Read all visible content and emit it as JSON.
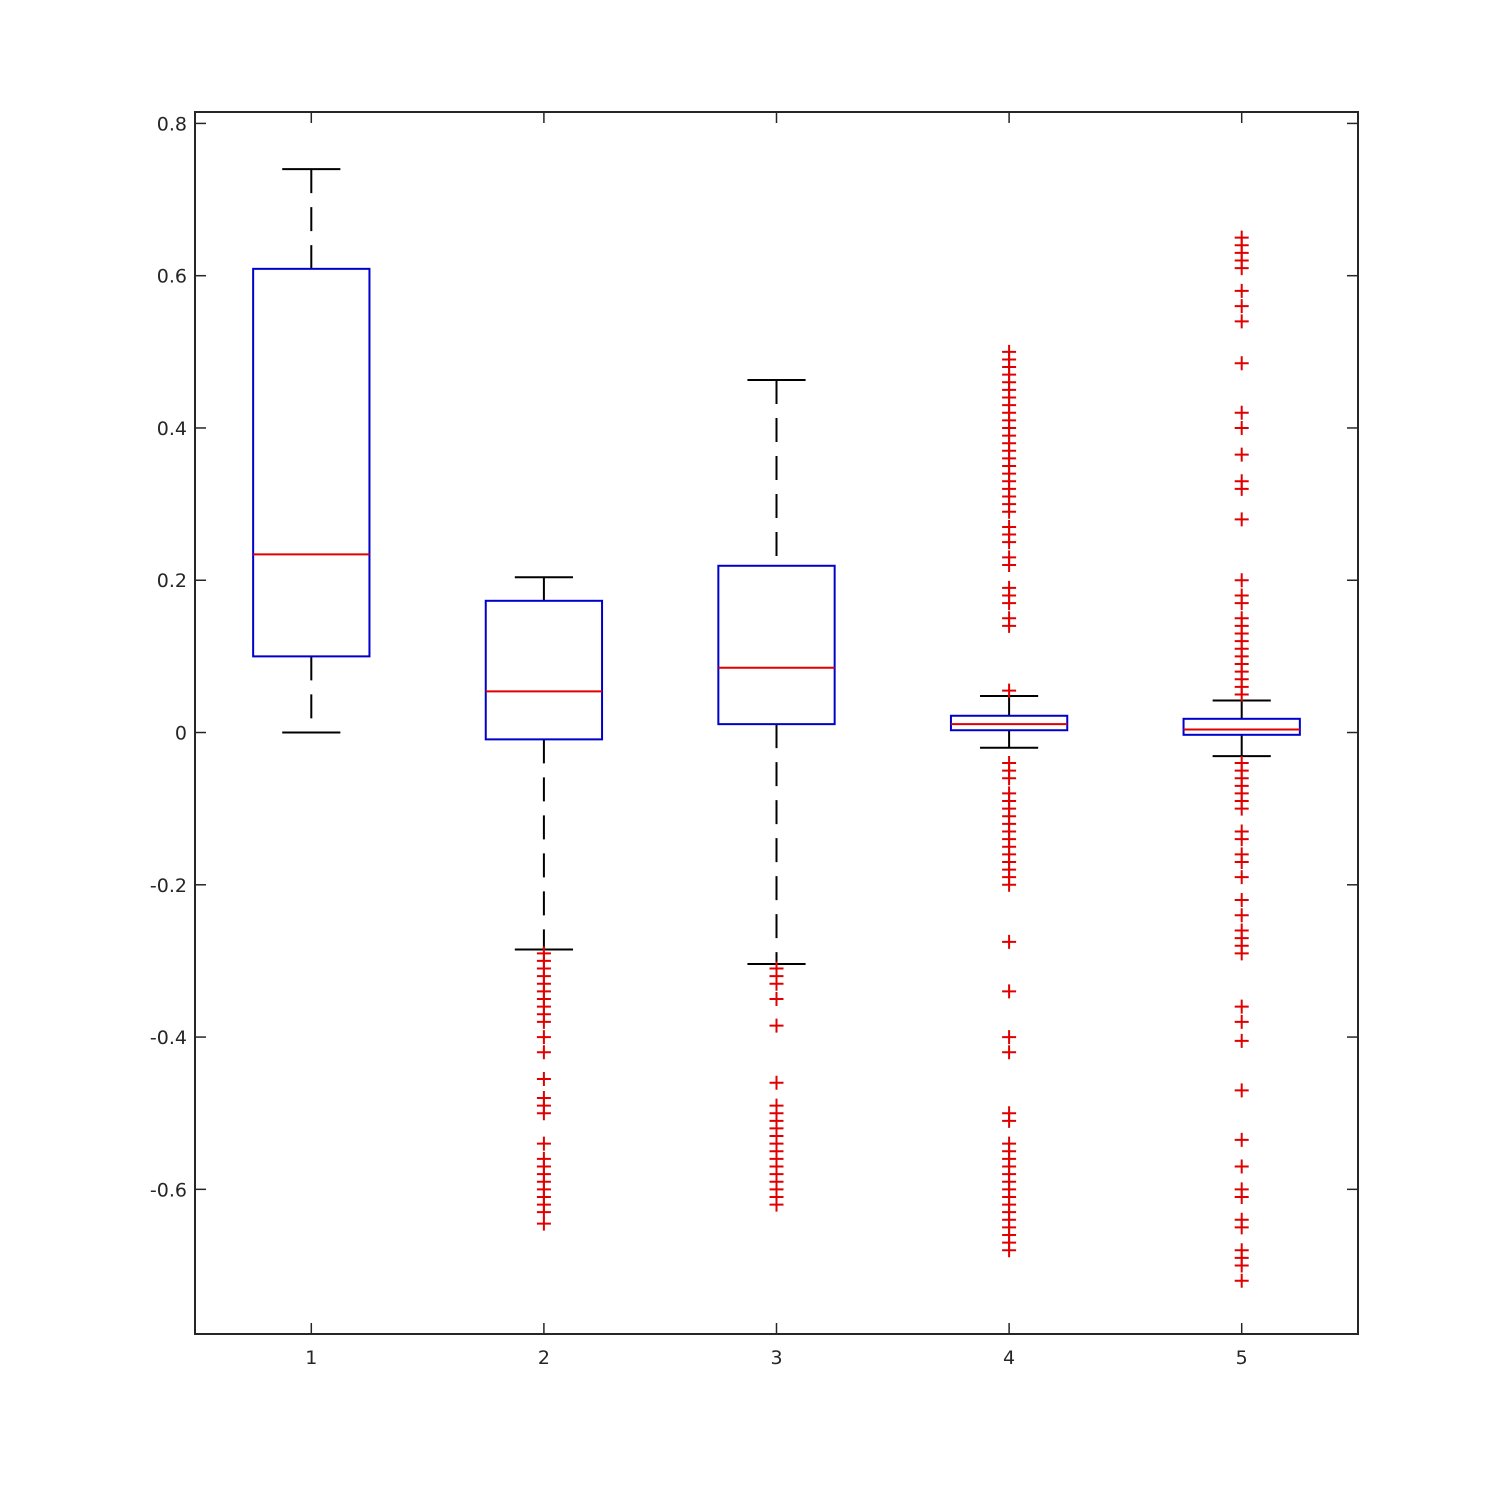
{
  "chart_data": {
    "type": "box",
    "title": "",
    "xlabel": "",
    "ylabel": "",
    "categories": [
      "1",
      "2",
      "3",
      "4",
      "5"
    ],
    "ylim": [
      -0.79,
      0.815
    ],
    "y_ticks": [
      -0.6,
      -0.4,
      -0.2,
      0,
      0.2,
      0.4,
      0.6,
      0.8
    ],
    "y_tick_labels": [
      "-0.6",
      "-0.4",
      "-0.2",
      "0",
      "0.2",
      "0.4",
      "0.6",
      "0.8"
    ],
    "grid": false,
    "colors": {
      "box": "#0000cc",
      "median": "#e00000",
      "whisker": "#000000",
      "outlier": "#e00000",
      "axes": "#262626"
    },
    "boxes": [
      {
        "category": "1",
        "whisker_low": 0.0,
        "q1": 0.1,
        "median": 0.234,
        "q3": 0.609,
        "whisker_high": 0.74,
        "outliers": []
      },
      {
        "category": "2",
        "whisker_low": -0.285,
        "q1": -0.009,
        "median": 0.054,
        "q3": 0.173,
        "whisker_high": 0.204,
        "outliers": [
          -0.29,
          -0.3,
          -0.31,
          -0.32,
          -0.33,
          -0.34,
          -0.35,
          -0.36,
          -0.37,
          -0.38,
          -0.4,
          -0.42,
          -0.455,
          -0.48,
          -0.49,
          -0.5,
          -0.54,
          -0.56,
          -0.57,
          -0.58,
          -0.59,
          -0.6,
          -0.61,
          -0.62,
          -0.63,
          -0.645
        ]
      },
      {
        "category": "3",
        "whisker_low": -0.304,
        "q1": 0.011,
        "median": 0.085,
        "q3": 0.219,
        "whisker_high": 0.463,
        "outliers": [
          -0.31,
          -0.32,
          -0.33,
          -0.35,
          -0.385,
          -0.46,
          -0.49,
          -0.5,
          -0.51,
          -0.52,
          -0.53,
          -0.54,
          -0.55,
          -0.56,
          -0.57,
          -0.58,
          -0.59,
          -0.6,
          -0.61,
          -0.62
        ]
      },
      {
        "category": "4",
        "whisker_low": -0.02,
        "q1": 0.003,
        "median": 0.011,
        "q3": 0.022,
        "whisker_high": 0.048,
        "outliers": [
          0.055,
          0.14,
          0.15,
          0.17,
          0.18,
          0.19,
          0.22,
          0.23,
          0.25,
          0.26,
          0.27,
          0.29,
          0.3,
          0.31,
          0.32,
          0.33,
          0.34,
          0.35,
          0.36,
          0.37,
          0.38,
          0.39,
          0.4,
          0.41,
          0.42,
          0.43,
          0.44,
          0.45,
          0.46,
          0.47,
          0.48,
          0.49,
          0.5,
          -0.04,
          -0.05,
          -0.06,
          -0.08,
          -0.09,
          -0.1,
          -0.11,
          -0.12,
          -0.13,
          -0.14,
          -0.15,
          -0.16,
          -0.17,
          -0.18,
          -0.19,
          -0.2,
          -0.275,
          -0.34,
          -0.4,
          -0.42,
          -0.5,
          -0.51,
          -0.54,
          -0.55,
          -0.56,
          -0.57,
          -0.58,
          -0.59,
          -0.6,
          -0.61,
          -0.62,
          -0.63,
          -0.64,
          -0.65,
          -0.66,
          -0.67,
          -0.68
        ]
      },
      {
        "category": "5",
        "whisker_low": -0.031,
        "q1": -0.003,
        "median": 0.004,
        "q3": 0.018,
        "whisker_high": 0.042,
        "outliers": [
          0.05,
          0.06,
          0.07,
          0.08,
          0.09,
          0.1,
          0.11,
          0.12,
          0.13,
          0.14,
          0.15,
          0.17,
          0.18,
          0.2,
          0.28,
          0.32,
          0.33,
          0.365,
          0.4,
          0.42,
          0.485,
          0.54,
          0.56,
          0.58,
          0.61,
          0.62,
          0.63,
          0.64,
          0.65,
          -0.04,
          -0.05,
          -0.06,
          -0.07,
          -0.08,
          -0.09,
          -0.1,
          -0.13,
          -0.14,
          -0.16,
          -0.17,
          -0.19,
          -0.22,
          -0.24,
          -0.26,
          -0.27,
          -0.28,
          -0.29,
          -0.36,
          -0.38,
          -0.405,
          -0.47,
          -0.535,
          -0.57,
          -0.6,
          -0.61,
          -0.64,
          -0.65,
          -0.68,
          -0.69,
          -0.7,
          -0.72
        ]
      }
    ]
  }
}
